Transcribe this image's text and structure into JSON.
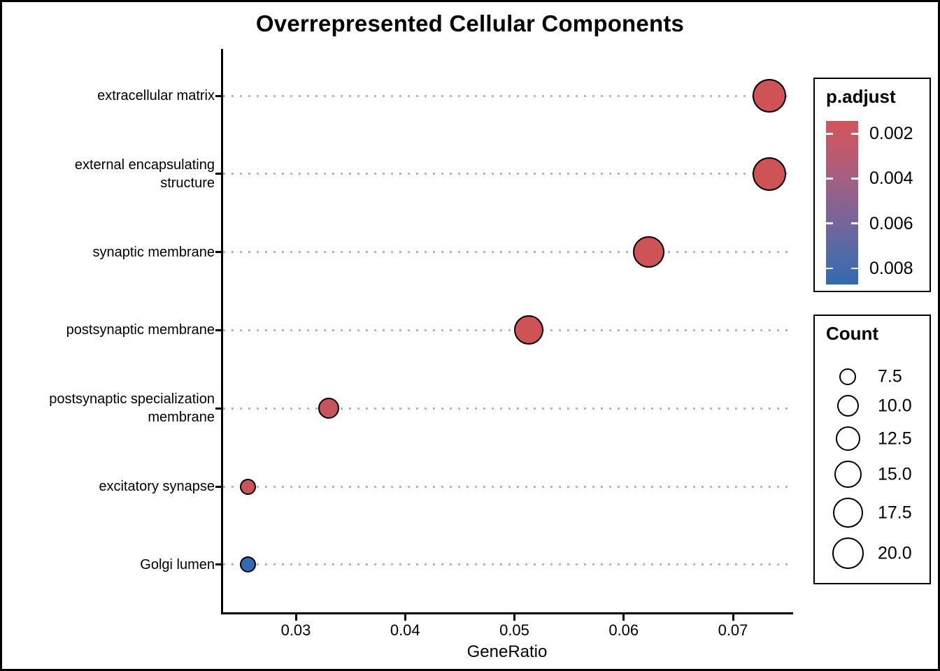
{
  "chart_data": {
    "type": "scatter",
    "title": "Overrepresented Cellular Components",
    "xlabel": "GeneRatio",
    "x_tick_labels": [
      "0.03",
      "0.04",
      "0.05",
      "0.06",
      "0.07"
    ],
    "x_tick_values": [
      0.03,
      0.04,
      0.05,
      0.06,
      0.07
    ],
    "xlim": [
      0.0233,
      0.0753
    ],
    "grid": "horizontal-dotted",
    "categories": [
      "extracellular matrix",
      "external encapsulating\nstructure",
      "synaptic membrane",
      "postsynaptic membrane",
      "postsynaptic specialization\nmembrane",
      "excitatory synapse",
      "Golgi lumen"
    ],
    "points": [
      {
        "label": "extracellular matrix",
        "gene_ratio": 0.0733,
        "count": 20,
        "p_adjust": 0.0015,
        "fill": "#CF5355",
        "radius_px": 24
      },
      {
        "label": "external encapsulating\nstructure",
        "gene_ratio": 0.0733,
        "count": 20,
        "p_adjust": 0.0015,
        "fill": "#CF5355",
        "radius_px": 24
      },
      {
        "label": "synaptic membrane",
        "gene_ratio": 0.0623,
        "count": 17,
        "p_adjust": 0.0016,
        "fill": "#CE5355",
        "radius_px": 22.5
      },
      {
        "label": "postsynaptic membrane",
        "gene_ratio": 0.0513,
        "count": 14,
        "p_adjust": 0.0017,
        "fill": "#CD5356",
        "radius_px": 21
      },
      {
        "label": "postsynaptic specialization\nmembrane",
        "gene_ratio": 0.033,
        "count": 9,
        "p_adjust": 0.0025,
        "fill": "#C6545F",
        "radius_px": 15
      },
      {
        "label": "excitatory synapse",
        "gene_ratio": 0.0256,
        "count": 7,
        "p_adjust": 0.002,
        "fill": "#CB545A",
        "radius_px": 11.5
      },
      {
        "label": "Golgi lumen",
        "gene_ratio": 0.0256,
        "count": 7,
        "p_adjust": 0.0085,
        "fill": "#316CB0",
        "radius_px": 11.5
      }
    ],
    "legend_p_adjust": {
      "title": "p.adjust",
      "tick_labels": [
        "0.002",
        "0.004",
        "0.006",
        "0.008"
      ],
      "tick_values": [
        0.002,
        0.004,
        0.006,
        0.008
      ],
      "domain": [
        0.00143,
        0.00872
      ],
      "gradient_stops": [
        "#D5545A",
        "#C05A6C",
        "#A75E80",
        "#8A6290",
        "#6E66A0",
        "#4F6BAA",
        "#3269AE"
      ]
    },
    "legend_count": {
      "title": "Count",
      "entries": [
        {
          "label": "7.5",
          "radius_px": 12
        },
        {
          "label": "10.0",
          "radius_px": 15.5
        },
        {
          "label": "12.5",
          "radius_px": 17.5
        },
        {
          "label": "15.0",
          "radius_px": 19.5
        },
        {
          "label": "17.5",
          "radius_px": 21.5
        },
        {
          "label": "20.0",
          "radius_px": 22.5
        }
      ]
    }
  }
}
